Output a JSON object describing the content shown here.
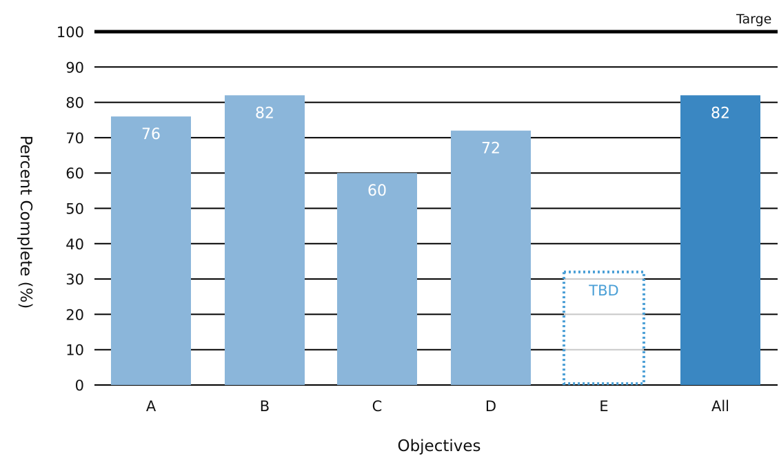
{
  "chart_data": {
    "type": "bar",
    "categories": [
      "A",
      "B",
      "C",
      "D",
      "E",
      "All"
    ],
    "values": [
      76,
      82,
      60,
      72,
      null,
      82
    ],
    "value_labels": [
      "76",
      "82",
      "60",
      "72",
      "TBD",
      "82"
    ],
    "pending": [
      false,
      false,
      false,
      false,
      true,
      false
    ],
    "pending_placeholder_value": 32,
    "highlight_index": 5,
    "xlabel": "Objectives",
    "ylabel": "Percent Complete (%)",
    "ylim": [
      0,
      100
    ],
    "yticks": [
      0,
      10,
      20,
      30,
      40,
      50,
      60,
      70,
      80,
      90,
      100
    ],
    "grid": true,
    "target": {
      "value": 100,
      "label": "Targe"
    },
    "colors": {
      "bar": "#8bb6da",
      "bar_highlight": "#3a87c2",
      "pending_outline": "#4a9fd6",
      "grid": "#000000",
      "pending_grid": "#c8c8c8"
    }
  }
}
